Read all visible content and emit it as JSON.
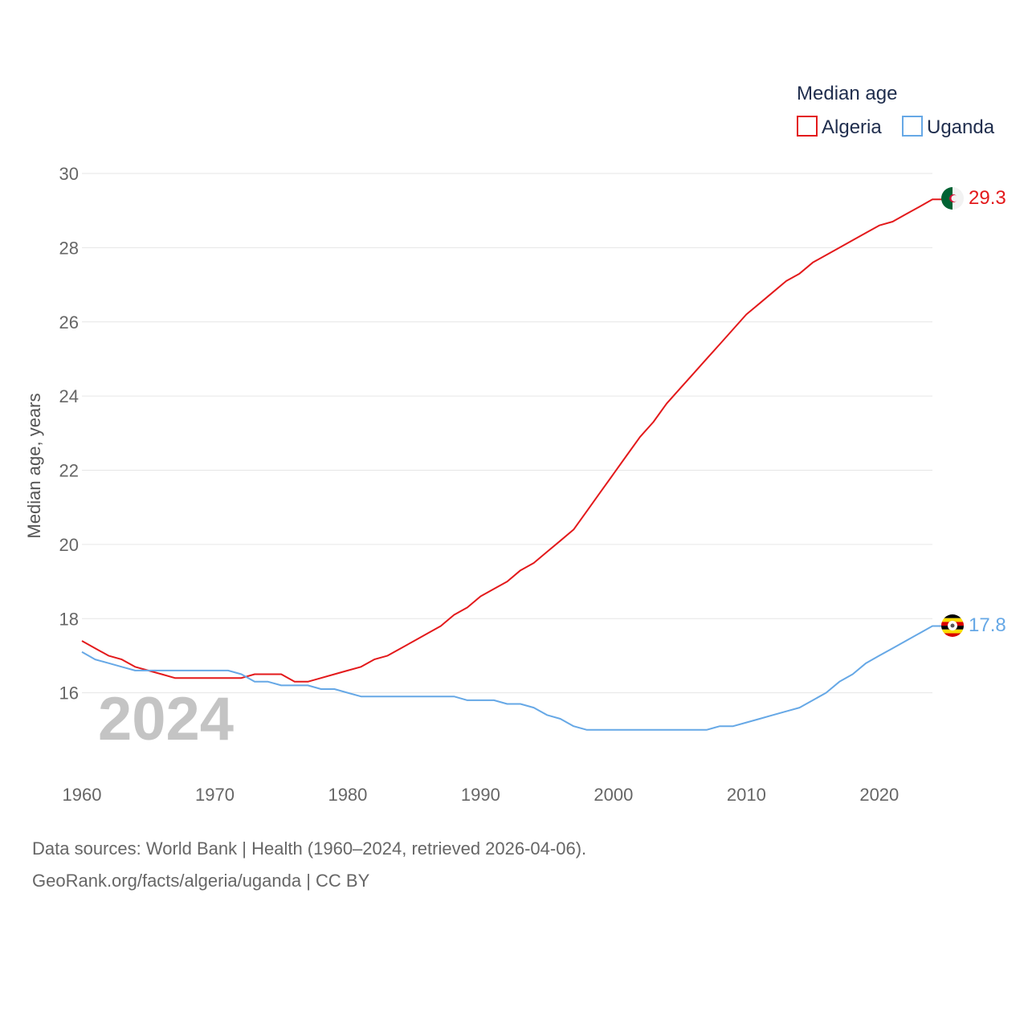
{
  "chart_data": {
    "type": "line",
    "legend_title": "Median age",
    "ylabel": "Median age, years",
    "xlim": [
      1960,
      2024
    ],
    "ylim": [
      14,
      30
    ],
    "yticks": [
      16,
      18,
      20,
      22,
      24,
      26,
      28,
      30
    ],
    "xticks": [
      1960,
      1970,
      1980,
      1990,
      2000,
      2010,
      2020
    ],
    "year_label": "2024",
    "x": [
      1960,
      1961,
      1962,
      1963,
      1964,
      1965,
      1966,
      1967,
      1968,
      1969,
      1970,
      1971,
      1972,
      1973,
      1974,
      1975,
      1976,
      1977,
      1978,
      1979,
      1980,
      1981,
      1982,
      1983,
      1984,
      1985,
      1986,
      1987,
      1988,
      1989,
      1990,
      1991,
      1992,
      1993,
      1994,
      1995,
      1996,
      1997,
      1998,
      1999,
      2000,
      2001,
      2002,
      2003,
      2004,
      2005,
      2006,
      2007,
      2008,
      2009,
      2010,
      2011,
      2012,
      2013,
      2014,
      2015,
      2016,
      2017,
      2018,
      2019,
      2020,
      2021,
      2022,
      2023,
      2024
    ],
    "series": [
      {
        "name": "Algeria",
        "color": "#e3191b",
        "end_label": "29.3",
        "values": [
          17.4,
          17.2,
          17.0,
          16.9,
          16.7,
          16.6,
          16.5,
          16.4,
          16.4,
          16.4,
          16.4,
          16.4,
          16.4,
          16.5,
          16.5,
          16.5,
          16.3,
          16.3,
          16.4,
          16.5,
          16.6,
          16.7,
          16.9,
          17.0,
          17.2,
          17.4,
          17.6,
          17.8,
          18.1,
          18.3,
          18.6,
          18.8,
          19.0,
          19.3,
          19.5,
          19.8,
          20.1,
          20.4,
          20.9,
          21.4,
          21.9,
          22.4,
          22.9,
          23.3,
          23.8,
          24.2,
          24.6,
          25.0,
          25.4,
          25.8,
          26.2,
          26.5,
          26.8,
          27.1,
          27.3,
          27.6,
          27.8,
          28.0,
          28.2,
          28.4,
          28.6,
          28.7,
          28.9,
          29.1,
          29.3
        ]
      },
      {
        "name": "Uganda",
        "color": "#66a8e6",
        "end_label": "17.8",
        "values": [
          17.1,
          16.9,
          16.8,
          16.7,
          16.6,
          16.6,
          16.6,
          16.6,
          16.6,
          16.6,
          16.6,
          16.6,
          16.5,
          16.3,
          16.3,
          16.2,
          16.2,
          16.2,
          16.1,
          16.1,
          16.0,
          15.9,
          15.9,
          15.9,
          15.9,
          15.9,
          15.9,
          15.9,
          15.9,
          15.8,
          15.8,
          15.8,
          15.7,
          15.7,
          15.6,
          15.4,
          15.3,
          15.1,
          15.0,
          15.0,
          15.0,
          15.0,
          15.0,
          15.0,
          15.0,
          15.0,
          15.0,
          15.0,
          15.1,
          15.1,
          15.2,
          15.3,
          15.4,
          15.5,
          15.6,
          15.8,
          16.0,
          16.3,
          16.5,
          16.8,
          17.0,
          17.2,
          17.4,
          17.6,
          17.8
        ]
      }
    ]
  },
  "footer": {
    "sources": "Data sources: World Bank | Health (1960–2024, retrieved 2026-04-06).",
    "credit": "GeoRank.org/facts/algeria/uganda | CC BY"
  }
}
